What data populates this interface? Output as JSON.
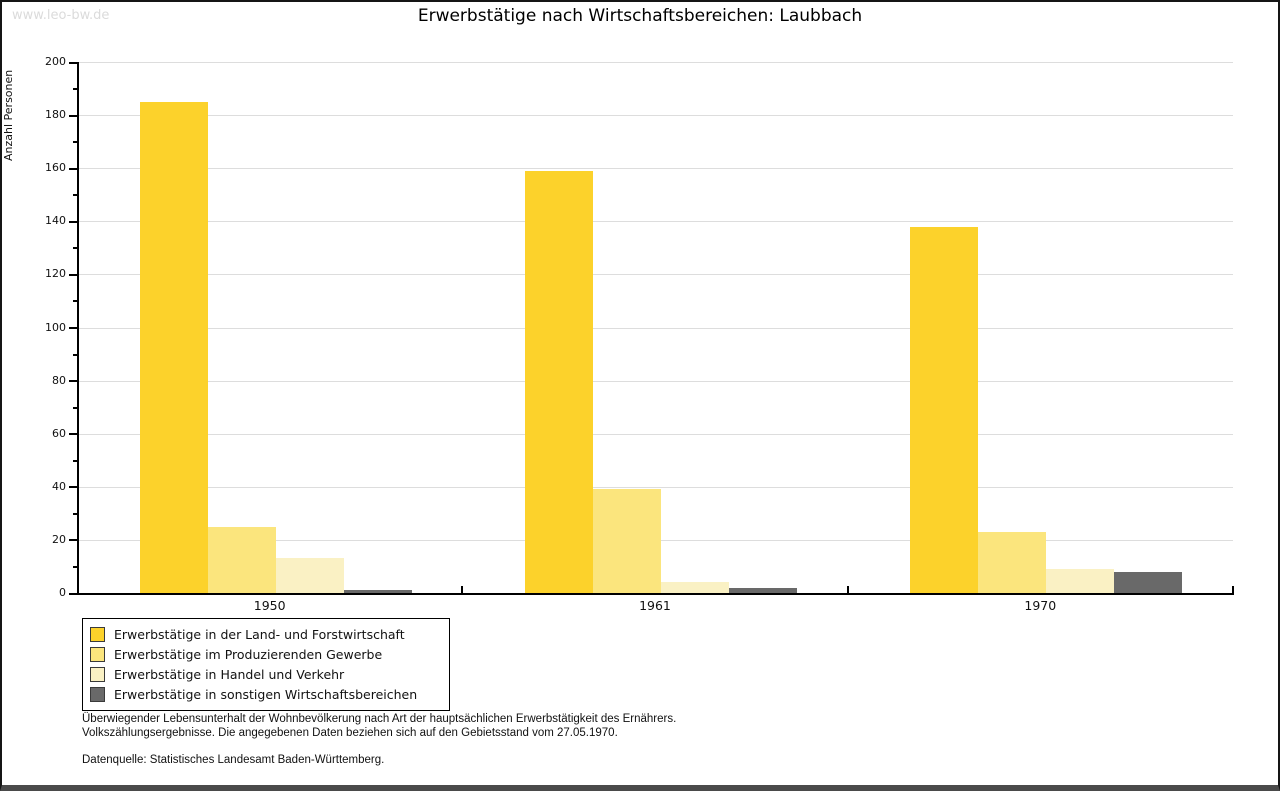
{
  "watermark": "www.leo-bw.de",
  "chart_data": {
    "type": "bar",
    "title": "Erwerbstätige nach Wirtschaftsbereichen: Laubbach",
    "ylabel": "Anzahl Personen",
    "xlabel": "",
    "categories": [
      "1950",
      "1961",
      "1970"
    ],
    "series": [
      {
        "name": "Erwerbstätige in der Land- und Forstwirtschaft",
        "color": "#FCD22B",
        "values": [
          185,
          159,
          138
        ]
      },
      {
        "name": "Erwerbstätige im Produzierenden Gewerbe",
        "color": "#FBE57D",
        "values": [
          25,
          39,
          23
        ]
      },
      {
        "name": "Erwerbstätige in Handel und Verkehr",
        "color": "#FAF1C4",
        "values": [
          13,
          4,
          9
        ]
      },
      {
        "name": "Erwerbstätige in sonstigen Wirtschaftsbereichen",
        "color": "#696969",
        "values": [
          1,
          2,
          8
        ]
      }
    ],
    "ylim": [
      0,
      200
    ],
    "ytick_step": 20,
    "ytick_minor_step": 10,
    "grid": true,
    "legend_position": "bottom-left",
    "gridline_color": "#DDDDDD"
  },
  "footnotes": [
    "Überwiegender Lebensunterhalt der Wohnbevölkerung nach Art der hauptsächlichen Erwerbstätigkeit des Ernährers.",
    "Volkszählungsergebnisse. Die angegebenen Daten beziehen sich auf den Gebietsstand vom 27.05.1970.",
    "Datenquelle: Statistisches Landesamt Baden-Württemberg."
  ]
}
